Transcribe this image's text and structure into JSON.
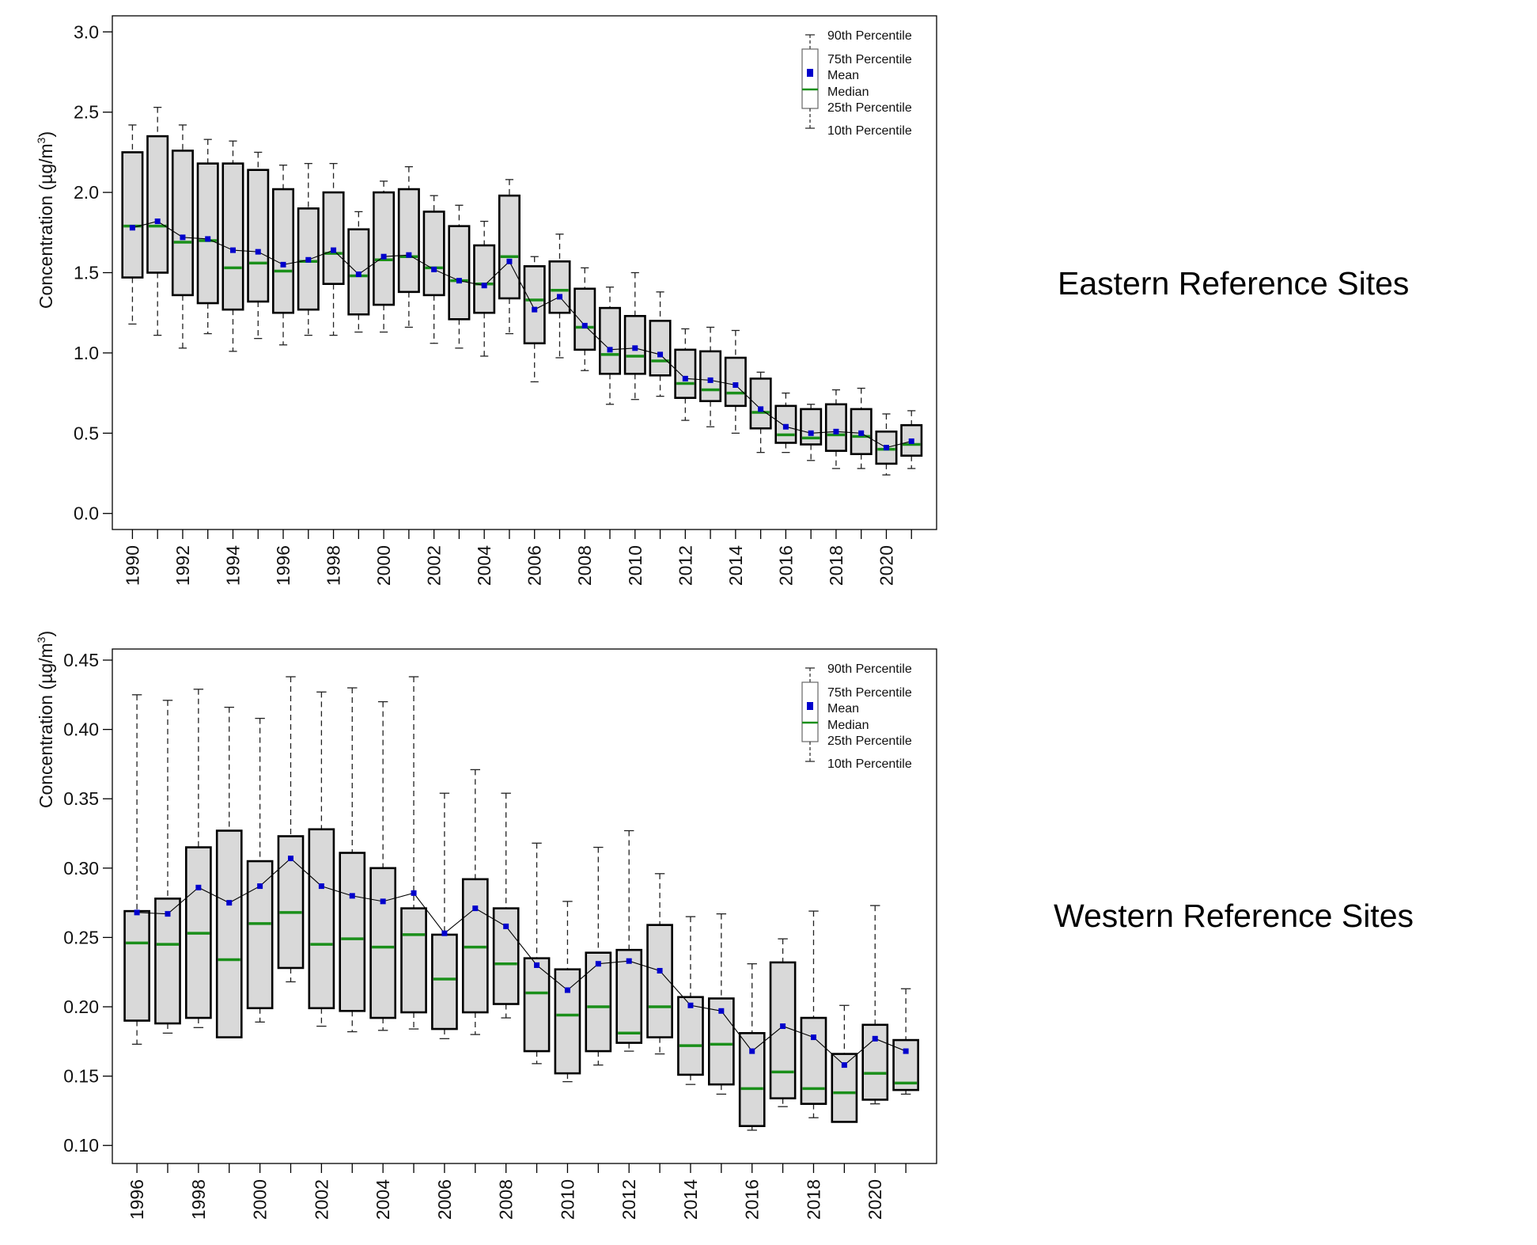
{
  "colors": {
    "box_fill": "#d9d9d9",
    "median": "#1a8f1a",
    "mean": "#0000cc",
    "whisker": "#222222",
    "line": "#000000"
  },
  "legend": {
    "p90": "90th Percentile",
    "p75": "75th Percentile",
    "mean": "Mean",
    "median": "Median",
    "p25": "25th Percentile",
    "p10": "10th Percentile"
  },
  "chart_data": [
    {
      "type": "box",
      "title": "Eastern Reference Sites",
      "ylabel_main": "Concentration (µg/m",
      "ylabel_sup": "3",
      "ylabel_end": ")",
      "ylim": [
        -0.1,
        3.1
      ],
      "yticks": [
        "0.0",
        "0.5",
        "1.0",
        "1.5",
        "2.0",
        "2.5",
        "3.0"
      ],
      "xlim": [
        1989.2,
        2022.0
      ],
      "xticks": [
        "1990",
        "1992",
        "1994",
        "1996",
        "1998",
        "2000",
        "2002",
        "2004",
        "2006",
        "2008",
        "2010",
        "2012",
        "2014",
        "2016",
        "2018",
        "2020"
      ],
      "years": [
        1990,
        1991,
        1992,
        1993,
        1994,
        1995,
        1996,
        1997,
        1998,
        1999,
        2000,
        2001,
        2002,
        2003,
        2004,
        2005,
        2006,
        2007,
        2008,
        2009,
        2010,
        2011,
        2012,
        2013,
        2014,
        2015,
        2016,
        2017,
        2018,
        2019,
        2020,
        2021
      ],
      "p10": [
        1.18,
        1.11,
        1.03,
        1.12,
        1.01,
        1.09,
        1.05,
        1.11,
        1.11,
        1.13,
        1.13,
        1.16,
        1.06,
        1.03,
        0.98,
        1.12,
        0.82,
        0.97,
        0.89,
        0.68,
        0.71,
        0.73,
        0.58,
        0.54,
        0.5,
        0.38,
        0.38,
        0.33,
        0.28,
        0.28,
        0.24,
        0.28
      ],
      "p25": [
        1.47,
        1.5,
        1.36,
        1.31,
        1.27,
        1.32,
        1.25,
        1.27,
        1.43,
        1.24,
        1.3,
        1.38,
        1.36,
        1.21,
        1.25,
        1.34,
        1.06,
        1.25,
        1.02,
        0.87,
        0.87,
        0.86,
        0.72,
        0.7,
        0.67,
        0.53,
        0.44,
        0.43,
        0.39,
        0.37,
        0.31,
        0.36
      ],
      "median": [
        1.79,
        1.79,
        1.69,
        1.7,
        1.53,
        1.56,
        1.51,
        1.57,
        1.62,
        1.48,
        1.58,
        1.6,
        1.53,
        1.45,
        1.43,
        1.6,
        1.33,
        1.39,
        1.16,
        0.99,
        0.98,
        0.95,
        0.81,
        0.77,
        0.75,
        0.63,
        0.49,
        0.47,
        0.49,
        0.48,
        0.4,
        0.43
      ],
      "p75": [
        2.25,
        2.35,
        2.26,
        2.18,
        2.18,
        2.14,
        2.02,
        1.9,
        2.0,
        1.77,
        2.0,
        2.02,
        1.88,
        1.79,
        1.67,
        1.98,
        1.54,
        1.57,
        1.4,
        1.28,
        1.23,
        1.2,
        1.02,
        1.01,
        0.97,
        0.84,
        0.67,
        0.65,
        0.68,
        0.65,
        0.51,
        0.55
      ],
      "p90": [
        2.42,
        2.53,
        2.42,
        2.33,
        2.32,
        2.25,
        2.17,
        2.18,
        2.18,
        1.88,
        2.07,
        2.16,
        1.98,
        1.92,
        1.82,
        2.08,
        1.6,
        1.74,
        1.53,
        1.41,
        1.5,
        1.38,
        1.15,
        1.16,
        1.14,
        0.88,
        0.75,
        0.68,
        0.77,
        0.78,
        0.62,
        0.64
      ],
      "mean": [
        1.78,
        1.82,
        1.72,
        1.71,
        1.64,
        1.63,
        1.55,
        1.58,
        1.64,
        1.49,
        1.6,
        1.61,
        1.52,
        1.45,
        1.42,
        1.57,
        1.27,
        1.35,
        1.17,
        1.02,
        1.03,
        0.99,
        0.84,
        0.83,
        0.8,
        0.65,
        0.54,
        0.5,
        0.51,
        0.5,
        0.41,
        0.45
      ]
    },
    {
      "type": "box",
      "title": "Western Reference Sites",
      "ylabel_main": "Concentration (µg/m",
      "ylabel_sup": "3",
      "ylabel_end": ")",
      "ylim": [
        0.087,
        0.458
      ],
      "yticks": [
        "0.10",
        "0.15",
        "0.20",
        "0.25",
        "0.30",
        "0.35",
        "0.40",
        "0.45"
      ],
      "xlim": [
        1995.2,
        2022.0
      ],
      "xticks": [
        "1996",
        "1998",
        "2000",
        "2002",
        "2004",
        "2006",
        "2008",
        "2010",
        "2012",
        "2014",
        "2016",
        "2018",
        "2020"
      ],
      "years": [
        1996,
        1997,
        1998,
        1999,
        2000,
        2001,
        2002,
        2003,
        2004,
        2005,
        2006,
        2007,
        2008,
        2009,
        2010,
        2011,
        2012,
        2013,
        2014,
        2015,
        2016,
        2017,
        2018,
        2019,
        2020,
        2021
      ],
      "p10": [
        0.173,
        0.181,
        0.185,
        0.178,
        0.189,
        0.218,
        0.186,
        0.182,
        0.183,
        0.184,
        0.177,
        0.18,
        0.192,
        0.159,
        0.146,
        0.158,
        0.168,
        0.166,
        0.144,
        0.137,
        0.111,
        0.128,
        0.12,
        0.117,
        0.13,
        0.137
      ],
      "p25": [
        0.19,
        0.188,
        0.192,
        0.178,
        0.199,
        0.228,
        0.199,
        0.197,
        0.192,
        0.196,
        0.184,
        0.196,
        0.202,
        0.168,
        0.152,
        0.168,
        0.174,
        0.178,
        0.151,
        0.144,
        0.114,
        0.134,
        0.13,
        0.117,
        0.133,
        0.14
      ],
      "median": [
        0.246,
        0.245,
        0.253,
        0.234,
        0.26,
        0.268,
        0.245,
        0.249,
        0.243,
        0.252,
        0.22,
        0.243,
        0.231,
        0.21,
        0.194,
        0.2,
        0.181,
        0.2,
        0.172,
        0.173,
        0.141,
        0.153,
        0.141,
        0.138,
        0.152,
        0.145
      ],
      "p75": [
        0.269,
        0.278,
        0.315,
        0.327,
        0.305,
        0.323,
        0.328,
        0.311,
        0.3,
        0.271,
        0.252,
        0.292,
        0.271,
        0.235,
        0.227,
        0.239,
        0.241,
        0.259,
        0.207,
        0.206,
        0.181,
        0.232,
        0.192,
        0.166,
        0.187,
        0.176
      ],
      "p90": [
        0.425,
        0.421,
        0.429,
        0.416,
        0.408,
        0.438,
        0.427,
        0.43,
        0.42,
        0.438,
        0.354,
        0.371,
        0.354,
        0.318,
        0.276,
        0.315,
        0.327,
        0.296,
        0.265,
        0.267,
        0.231,
        0.249,
        0.269,
        0.201,
        0.273,
        0.213
      ],
      "mean": [
        0.268,
        0.267,
        0.286,
        0.275,
        0.287,
        0.307,
        0.287,
        0.28,
        0.276,
        0.282,
        0.253,
        0.271,
        0.258,
        0.23,
        0.212,
        0.231,
        0.233,
        0.226,
        0.201,
        0.197,
        0.168,
        0.186,
        0.178,
        0.158,
        0.177,
        0.168
      ]
    }
  ]
}
